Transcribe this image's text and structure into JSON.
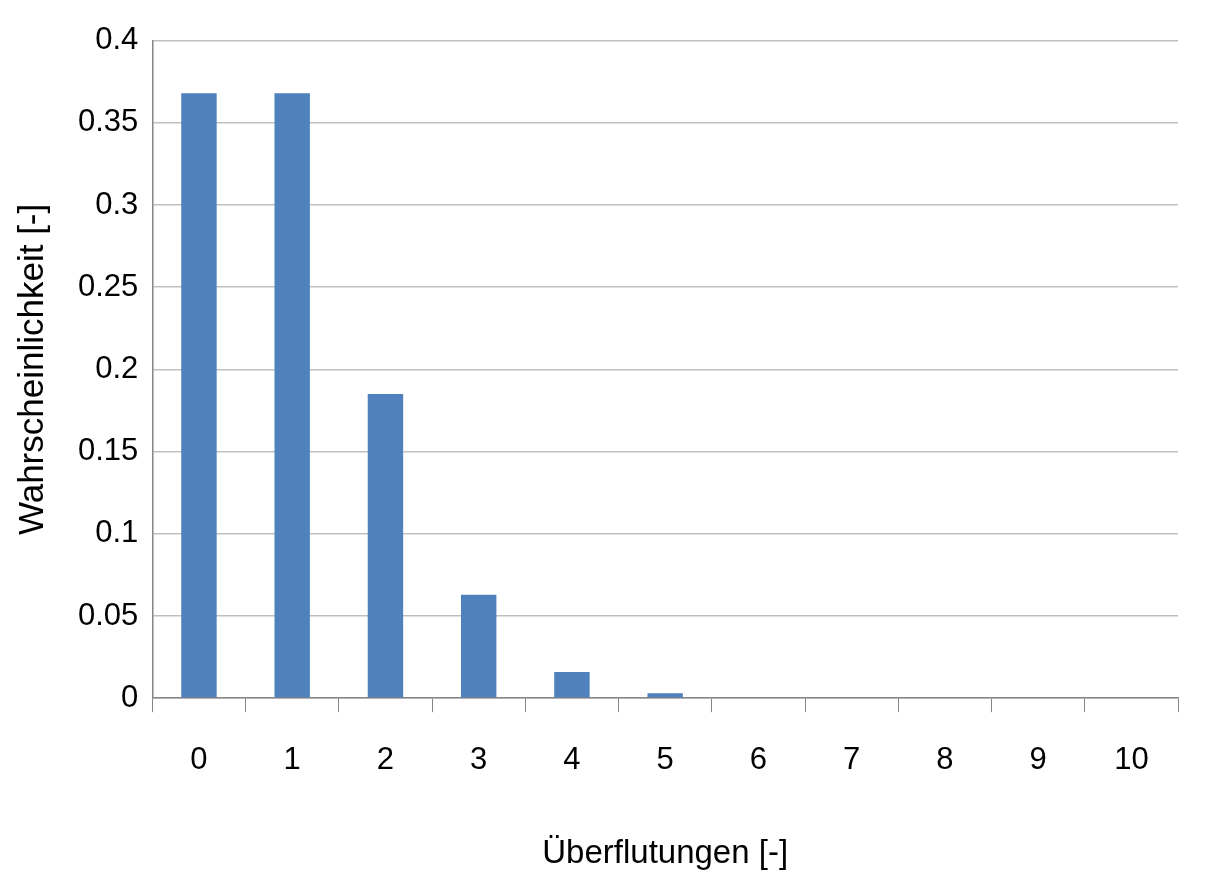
{
  "chart_data": {
    "type": "bar",
    "xlabel": "Überflutungen [-]",
    "ylabel": "Wahrscheinlichkeit [-]",
    "categories": [
      "0",
      "1",
      "2",
      "3",
      "4",
      "5",
      "6",
      "7",
      "8",
      "9",
      "10"
    ],
    "values": [
      0.368,
      0.368,
      0.185,
      0.063,
      0.016,
      0.003,
      0,
      0,
      0,
      0,
      0
    ],
    "color": "#4f81bd",
    "ylim": [
      0,
      0.4
    ],
    "yticks": [
      0,
      0.05,
      0.1,
      0.15,
      0.2,
      0.25,
      0.3,
      0.35,
      0.4
    ],
    "grid": "y",
    "legend": false
  }
}
